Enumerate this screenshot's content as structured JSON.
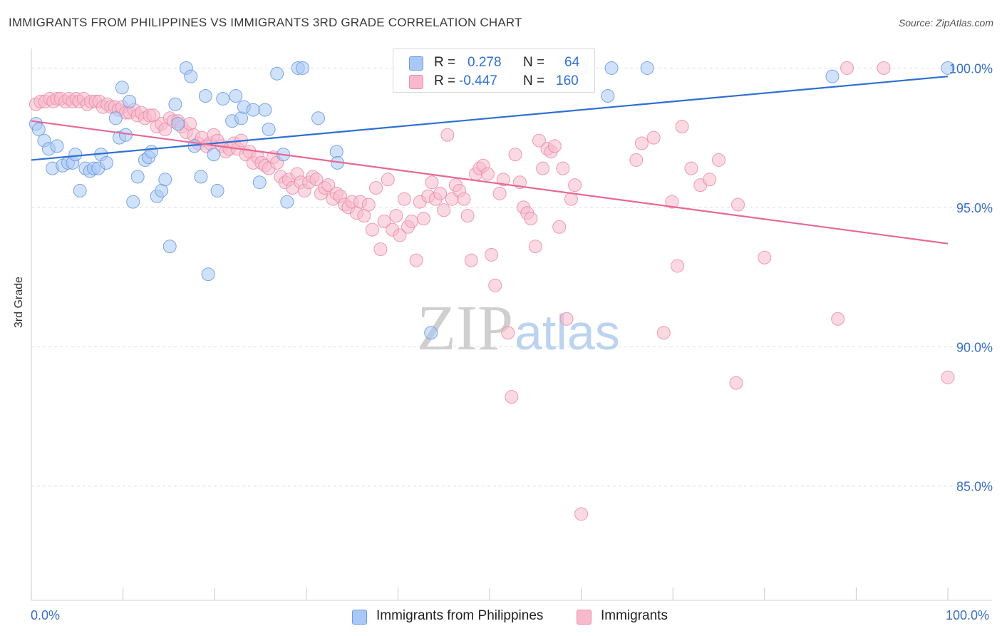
{
  "header": {
    "title": "IMMIGRANTS FROM PHILIPPINES VS IMMIGRANTS 3RD GRADE CORRELATION CHART",
    "source": "Source: ZipAtlas.com"
  },
  "watermark": {
    "zip": "ZIP",
    "atlas": "atlas"
  },
  "legend": {
    "rows": [
      {
        "r_label": "R =",
        "r_value": "0.278",
        "n_label": "N =",
        "n_value": "64"
      },
      {
        "r_label": "R =",
        "r_value": "-0.447",
        "n_label": "N =",
        "n_value": "160"
      }
    ]
  },
  "colors": {
    "blue_fill": "#a9c8f5",
    "blue_stroke": "#6e9be0",
    "blue_line": "#2f6fd1",
    "pink_fill": "#f7b9cc",
    "pink_stroke": "#ea8fae",
    "pink_line": "#e76795",
    "tick_text": "#3a6fc4",
    "grid": "#dcdcdc"
  },
  "chart_data": {
    "type": "scatter",
    "title": "IMMIGRANTS FROM PHILIPPINES VS IMMIGRANTS 3RD GRADE CORRELATION CHART",
    "xlabel": "",
    "ylabel": "3rd Grade",
    "xlim": [
      0,
      100
    ],
    "ylim": [
      80.9,
      100.6
    ],
    "x_tick_labels": [
      "0.0%",
      "100.0%"
    ],
    "y_ticks": [
      85,
      90,
      95,
      100
    ],
    "y_tick_labels": [
      "85.0%",
      "90.0%",
      "95.0%",
      "100.0%"
    ],
    "grid": true,
    "legend_position": "top-center",
    "series": [
      {
        "name": "Immigrants from Philippines",
        "r": 0.278,
        "n": 64,
        "trend": {
          "x": [
            0,
            100
          ],
          "y": [
            96.7,
            99.7
          ]
        },
        "points": [
          [
            0.5,
            98.0
          ],
          [
            0.8,
            97.8
          ],
          [
            1.4,
            97.4
          ],
          [
            1.9,
            97.1
          ],
          [
            2.3,
            96.4
          ],
          [
            2.8,
            97.2
          ],
          [
            3.4,
            96.5
          ],
          [
            4.0,
            96.6
          ],
          [
            4.5,
            96.6
          ],
          [
            4.8,
            96.9
          ],
          [
            5.3,
            95.6
          ],
          [
            5.9,
            96.4
          ],
          [
            6.4,
            96.3
          ],
          [
            6.8,
            96.4
          ],
          [
            7.3,
            96.4
          ],
          [
            7.6,
            96.9
          ],
          [
            8.2,
            96.6
          ],
          [
            9.2,
            98.2
          ],
          [
            9.6,
            97.5
          ],
          [
            9.9,
            99.3
          ],
          [
            10.3,
            97.6
          ],
          [
            10.7,
            98.8
          ],
          [
            11.1,
            95.2
          ],
          [
            11.6,
            96.1
          ],
          [
            12.4,
            96.7
          ],
          [
            12.8,
            96.8
          ],
          [
            13.1,
            97.0
          ],
          [
            13.7,
            95.4
          ],
          [
            14.2,
            95.6
          ],
          [
            14.6,
            96.0
          ],
          [
            15.1,
            93.6
          ],
          [
            15.7,
            98.7
          ],
          [
            16.0,
            98.0
          ],
          [
            16.9,
            100.0
          ],
          [
            17.4,
            99.7
          ],
          [
            17.8,
            97.2
          ],
          [
            18.5,
            96.1
          ],
          [
            19.0,
            99.0
          ],
          [
            19.3,
            92.6
          ],
          [
            19.9,
            96.9
          ],
          [
            20.3,
            95.6
          ],
          [
            20.9,
            98.9
          ],
          [
            21.9,
            98.1
          ],
          [
            22.3,
            99.0
          ],
          [
            22.9,
            98.2
          ],
          [
            23.2,
            98.6
          ],
          [
            24.2,
            98.5
          ],
          [
            24.9,
            95.9
          ],
          [
            25.5,
            98.5
          ],
          [
            25.9,
            97.8
          ],
          [
            26.8,
            99.8
          ],
          [
            27.5,
            96.9
          ],
          [
            27.9,
            95.2
          ],
          [
            29.1,
            100.0
          ],
          [
            29.6,
            100.0
          ],
          [
            31.3,
            98.2
          ],
          [
            33.3,
            97.0
          ],
          [
            33.4,
            96.6
          ],
          [
            43.6,
            90.5
          ],
          [
            60.0,
            100.0
          ],
          [
            62.9,
            99.0
          ],
          [
            63.3,
            100.0
          ],
          [
            67.2,
            100.0
          ],
          [
            87.4,
            99.7
          ],
          [
            100.0,
            100.0
          ]
        ]
      },
      {
        "name": "Immigrants",
        "r": -0.447,
        "n": 160,
        "trend": {
          "x": [
            0,
            100
          ],
          "y": [
            98.1,
            93.7
          ]
        },
        "points": [
          [
            0.5,
            98.7
          ],
          [
            1.0,
            98.8
          ],
          [
            1.5,
            98.8
          ],
          [
            2.0,
            98.9
          ],
          [
            2.4,
            98.8
          ],
          [
            2.8,
            98.9
          ],
          [
            3.2,
            98.9
          ],
          [
            3.7,
            98.8
          ],
          [
            4.1,
            98.9
          ],
          [
            4.5,
            98.8
          ],
          [
            4.9,
            98.9
          ],
          [
            5.2,
            98.8
          ],
          [
            5.7,
            98.9
          ],
          [
            6.1,
            98.7
          ],
          [
            6.5,
            98.8
          ],
          [
            7.0,
            98.8
          ],
          [
            7.4,
            98.8
          ],
          [
            7.8,
            98.6
          ],
          [
            8.3,
            98.7
          ],
          [
            8.7,
            98.6
          ],
          [
            9.1,
            98.6
          ],
          [
            9.5,
            98.5
          ],
          [
            9.9,
            98.6
          ],
          [
            10.3,
            98.4
          ],
          [
            10.7,
            98.4
          ],
          [
            11.2,
            98.5
          ],
          [
            11.6,
            98.3
          ],
          [
            12.0,
            98.4
          ],
          [
            12.4,
            98.2
          ],
          [
            12.9,
            98.3
          ],
          [
            13.3,
            98.3
          ],
          [
            13.7,
            97.9
          ],
          [
            14.2,
            98.0
          ],
          [
            14.6,
            97.8
          ],
          [
            15.1,
            98.2
          ],
          [
            15.5,
            98.1
          ],
          [
            16.0,
            98.1
          ],
          [
            16.4,
            97.9
          ],
          [
            16.9,
            97.7
          ],
          [
            17.3,
            98.0
          ],
          [
            17.7,
            97.6
          ],
          [
            18.2,
            97.3
          ],
          [
            18.6,
            97.5
          ],
          [
            19.1,
            97.2
          ],
          [
            19.5,
            97.3
          ],
          [
            19.9,
            97.6
          ],
          [
            20.3,
            97.4
          ],
          [
            20.8,
            97.2
          ],
          [
            21.2,
            97.0
          ],
          [
            21.6,
            97.1
          ],
          [
            22.1,
            97.3
          ],
          [
            22.5,
            97.1
          ],
          [
            22.9,
            97.4
          ],
          [
            23.4,
            96.9
          ],
          [
            23.8,
            97.0
          ],
          [
            24.2,
            96.6
          ],
          [
            24.7,
            96.8
          ],
          [
            25.1,
            96.6
          ],
          [
            25.5,
            96.5
          ],
          [
            25.9,
            96.4
          ],
          [
            26.4,
            96.8
          ],
          [
            26.8,
            96.6
          ],
          [
            27.2,
            96.1
          ],
          [
            27.7,
            95.9
          ],
          [
            28.1,
            96.0
          ],
          [
            28.5,
            95.7
          ],
          [
            29.0,
            96.2
          ],
          [
            29.4,
            95.9
          ],
          [
            29.8,
            95.6
          ],
          [
            30.3,
            95.9
          ],
          [
            30.7,
            96.1
          ],
          [
            31.1,
            96.0
          ],
          [
            31.6,
            95.5
          ],
          [
            32.0,
            95.7
          ],
          [
            32.4,
            95.8
          ],
          [
            32.9,
            95.3
          ],
          [
            33.3,
            95.5
          ],
          [
            33.7,
            95.4
          ],
          [
            34.2,
            95.1
          ],
          [
            34.6,
            95.0
          ],
          [
            35.0,
            95.2
          ],
          [
            35.5,
            94.8
          ],
          [
            35.9,
            95.2
          ],
          [
            36.3,
            94.7
          ],
          [
            36.8,
            95.1
          ],
          [
            37.2,
            94.2
          ],
          [
            37.6,
            95.7
          ],
          [
            38.1,
            93.5
          ],
          [
            38.5,
            94.5
          ],
          [
            38.9,
            96.0
          ],
          [
            39.4,
            94.2
          ],
          [
            39.8,
            94.7
          ],
          [
            40.2,
            94.0
          ],
          [
            40.7,
            95.3
          ],
          [
            41.1,
            94.3
          ],
          [
            41.5,
            94.5
          ],
          [
            42.0,
            93.1
          ],
          [
            42.4,
            95.2
          ],
          [
            42.8,
            94.6
          ],
          [
            43.3,
            95.4
          ],
          [
            43.7,
            95.9
          ],
          [
            44.1,
            95.3
          ],
          [
            44.6,
            95.5
          ],
          [
            45.0,
            94.9
          ],
          [
            45.4,
            97.6
          ],
          [
            45.9,
            95.3
          ],
          [
            46.3,
            95.8
          ],
          [
            46.7,
            95.6
          ],
          [
            47.2,
            95.3
          ],
          [
            47.6,
            94.7
          ],
          [
            48.0,
            93.1
          ],
          [
            48.5,
            96.2
          ],
          [
            48.9,
            96.4
          ],
          [
            49.3,
            96.5
          ],
          [
            49.8,
            96.2
          ],
          [
            50.2,
            93.3
          ],
          [
            50.6,
            92.2
          ],
          [
            51.1,
            95.5
          ],
          [
            51.5,
            96.0
          ],
          [
            52.0,
            90.5
          ],
          [
            52.4,
            88.2
          ],
          [
            52.8,
            96.9
          ],
          [
            53.3,
            95.9
          ],
          [
            53.7,
            95.0
          ],
          [
            54.1,
            94.8
          ],
          [
            54.5,
            94.6
          ],
          [
            55.0,
            93.6
          ],
          [
            55.4,
            97.4
          ],
          [
            55.8,
            96.4
          ],
          [
            56.3,
            97.1
          ],
          [
            56.7,
            97.0
          ],
          [
            57.1,
            97.2
          ],
          [
            57.6,
            94.3
          ],
          [
            58.0,
            96.4
          ],
          [
            58.4,
            91.0
          ],
          [
            58.9,
            95.3
          ],
          [
            59.3,
            95.8
          ],
          [
            60.0,
            84.0
          ],
          [
            66.0,
            96.7
          ],
          [
            66.6,
            97.3
          ],
          [
            67.9,
            97.5
          ],
          [
            69.0,
            90.5
          ],
          [
            69.9,
            95.2
          ],
          [
            70.5,
            92.9
          ],
          [
            71.0,
            97.9
          ],
          [
            72.0,
            96.4
          ],
          [
            73.0,
            95.8
          ],
          [
            74.0,
            96.0
          ],
          [
            75.0,
            96.7
          ],
          [
            76.9,
            88.7
          ],
          [
            77.1,
            95.1
          ],
          [
            80.0,
            93.2
          ],
          [
            88.0,
            91.0
          ],
          [
            89.0,
            100.0
          ],
          [
            93.0,
            100.0
          ],
          [
            100.0,
            88.9
          ]
        ]
      }
    ]
  }
}
